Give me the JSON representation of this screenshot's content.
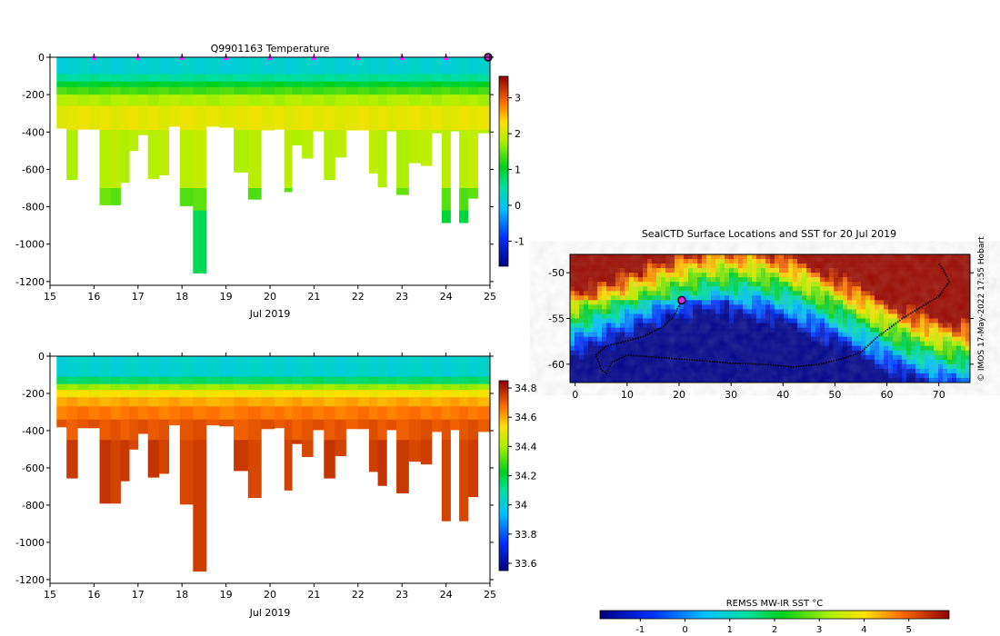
{
  "temp_panel": {
    "title": "Q9901163  Temperature",
    "xlabel": "Jul 2019",
    "x_ticks": [
      "15",
      "16",
      "17",
      "18",
      "19",
      "20",
      "21",
      "22",
      "23",
      "24",
      "25"
    ],
    "y_ticks": [
      "0",
      "-200",
      "-400",
      "-600",
      "-800",
      "-1000",
      "-1200"
    ],
    "colorbar_ticks": [
      "3",
      "2",
      "1",
      "0",
      "-1"
    ],
    "colorbar_range": [
      -1.7,
      3.6
    ],
    "marker_days": [
      16,
      17,
      18,
      19,
      20,
      21,
      22,
      23,
      24
    ]
  },
  "sal_panel": {
    "xlabel": "Jul 2019",
    "x_ticks": [
      "15",
      "16",
      "17",
      "18",
      "19",
      "20",
      "21",
      "22",
      "23",
      "24",
      "25"
    ],
    "y_ticks": [
      "0",
      "-200",
      "-400",
      "-600",
      "-800",
      "-1000",
      "-1200"
    ],
    "colorbar_ticks": [
      "34.8",
      "34.6",
      "34.4",
      "34.2",
      "34",
      "33.8",
      "33.6"
    ],
    "colorbar_range": [
      33.55,
      34.85
    ]
  },
  "map_panel": {
    "title": "SealCTD Surface Locations and SST for 20 Jul 2019",
    "x_ticks": [
      "0",
      "10",
      "20",
      "30",
      "40",
      "50",
      "60",
      "70"
    ],
    "y_ticks": [
      "-50",
      "-55",
      "-60"
    ],
    "xlim": [
      -1,
      76
    ],
    "ylim": [
      -62,
      -48
    ],
    "colorbar_label": "REMSS MW-IR SST °C",
    "colorbar_ticks": [
      "-1",
      "0",
      "1",
      "2",
      "3",
      "4",
      "5"
    ],
    "colorbar_range": [
      -1.9,
      5.9
    ],
    "credit": "© IMOS 17-May-2022 17:55 Hobart"
  },
  "chart_data": [
    {
      "type": "heatmap",
      "title": "Q9901163  Temperature",
      "xlabel": "Jul 2019",
      "ylabel": "",
      "xlim": [
        15,
        25
      ],
      "ylim": [
        -1220,
        0
      ],
      "variable": "temperature",
      "profiles": [
        {
          "day": 15.25,
          "max_depth": 380
        },
        {
          "day": 15.5,
          "max_depth": 655
        },
        {
          "day": 15.75,
          "max_depth": 385
        },
        {
          "day": 16.0,
          "max_depth": 385
        },
        {
          "day": 16.25,
          "max_depth": 790
        },
        {
          "day": 16.5,
          "max_depth": 790
        },
        {
          "day": 16.7,
          "max_depth": 670
        },
        {
          "day": 16.9,
          "max_depth": 500
        },
        {
          "day": 17.1,
          "max_depth": 415
        },
        {
          "day": 17.35,
          "max_depth": 650
        },
        {
          "day": 17.6,
          "max_depth": 630
        },
        {
          "day": 17.8,
          "max_depth": 370
        },
        {
          "day": 18.1,
          "max_depth": 795
        },
        {
          "day": 18.4,
          "max_depth": 1155
        },
        {
          "day": 18.7,
          "max_depth": 370
        },
        {
          "day": 19.0,
          "max_depth": 375
        },
        {
          "day": 19.35,
          "max_depth": 615
        },
        {
          "day": 19.65,
          "max_depth": 760
        },
        {
          "day": 19.95,
          "max_depth": 390
        },
        {
          "day": 20.25,
          "max_depth": 385
        },
        {
          "day": 20.4,
          "max_depth": 720
        },
        {
          "day": 20.6,
          "max_depth": 470
        },
        {
          "day": 20.85,
          "max_depth": 540
        },
        {
          "day": 21.1,
          "max_depth": 395
        },
        {
          "day": 21.35,
          "max_depth": 655
        },
        {
          "day": 21.6,
          "max_depth": 535
        },
        {
          "day": 21.85,
          "max_depth": 390
        },
        {
          "day": 22.15,
          "max_depth": 390
        },
        {
          "day": 22.35,
          "max_depth": 620
        },
        {
          "day": 22.55,
          "max_depth": 695
        },
        {
          "day": 22.75,
          "max_depth": 395
        },
        {
          "day": 23.0,
          "max_depth": 735
        },
        {
          "day": 23.3,
          "max_depth": 565
        },
        {
          "day": 23.55,
          "max_depth": 580
        },
        {
          "day": 23.8,
          "max_depth": 405
        },
        {
          "day": 24.0,
          "max_depth": 885
        },
        {
          "day": 24.2,
          "max_depth": 395
        },
        {
          "day": 24.4,
          "max_depth": 885
        },
        {
          "day": 24.6,
          "max_depth": 755
        },
        {
          "day": 24.85,
          "max_depth": 405
        }
      ],
      "temperature_layers": [
        {
          "from": 0,
          "to": 90,
          "value": 0.2
        },
        {
          "from": 90,
          "to": 130,
          "value": 0.55
        },
        {
          "from": 130,
          "to": 160,
          "value": 1.0
        },
        {
          "from": 160,
          "to": 200,
          "value": 1.35
        },
        {
          "from": 200,
          "to": 260,
          "value": 1.8
        },
        {
          "from": 260,
          "to": 390,
          "value": 2.15
        },
        {
          "from": 390,
          "to": 700,
          "value": 1.85
        },
        {
          "from": 700,
          "to": 820,
          "value": 1.45
        },
        {
          "from": 820,
          "to": 1200,
          "value": 0.9
        }
      ]
    },
    {
      "type": "heatmap",
      "title": "",
      "xlabel": "Jul 2019",
      "ylabel": "",
      "xlim": [
        15,
        25
      ],
      "ylim": [
        -1220,
        0
      ],
      "variable": "salinity",
      "salinity_layers": [
        {
          "from": 0,
          "to": 110,
          "value": 34.02
        },
        {
          "from": 110,
          "to": 150,
          "value": 34.15
        },
        {
          "from": 150,
          "to": 180,
          "value": 34.38
        },
        {
          "from": 180,
          "to": 220,
          "value": 34.52
        },
        {
          "from": 220,
          "to": 270,
          "value": 34.6
        },
        {
          "from": 270,
          "to": 340,
          "value": 34.66
        },
        {
          "from": 340,
          "to": 450,
          "value": 34.71
        },
        {
          "from": 450,
          "to": 1200,
          "value": 34.75
        }
      ]
    },
    {
      "type": "scatter",
      "title": "SealCTD Surface Locations and SST for 20 Jul 2019",
      "xlabel": "",
      "ylabel": "",
      "xlim": [
        -1,
        76
      ],
      "ylim": [
        -62,
        -48
      ],
      "track": [
        {
          "x": 70,
          "y": -49.0
        },
        {
          "x": 71,
          "y": -49.8
        },
        {
          "x": 72,
          "y": -51.0
        },
        {
          "x": 70,
          "y": -52.6
        },
        {
          "x": 67,
          "y": -53.6
        },
        {
          "x": 63,
          "y": -55.0
        },
        {
          "x": 58,
          "y": -57.1
        },
        {
          "x": 55,
          "y": -58.7
        },
        {
          "x": 52,
          "y": -59.3
        },
        {
          "x": 47,
          "y": -60.0
        },
        {
          "x": 42,
          "y": -60.3
        },
        {
          "x": 36,
          "y": -60.0
        },
        {
          "x": 30,
          "y": -59.9
        },
        {
          "x": 24,
          "y": -59.6
        },
        {
          "x": 17,
          "y": -59.3
        },
        {
          "x": 10,
          "y": -59.0
        },
        {
          "x": 7,
          "y": -59.8
        },
        {
          "x": 6,
          "y": -61.0
        },
        {
          "x": 5,
          "y": -60.6
        },
        {
          "x": 4,
          "y": -59.0
        },
        {
          "x": 6,
          "y": -58.0
        },
        {
          "x": 9,
          "y": -57.6
        },
        {
          "x": 13,
          "y": -57.0
        },
        {
          "x": 17,
          "y": -55.9
        },
        {
          "x": 19,
          "y": -54.7
        },
        {
          "x": 20.5,
          "y": -53.0
        }
      ],
      "current_position": {
        "x": 20.5,
        "y": -53.0
      }
    }
  ]
}
